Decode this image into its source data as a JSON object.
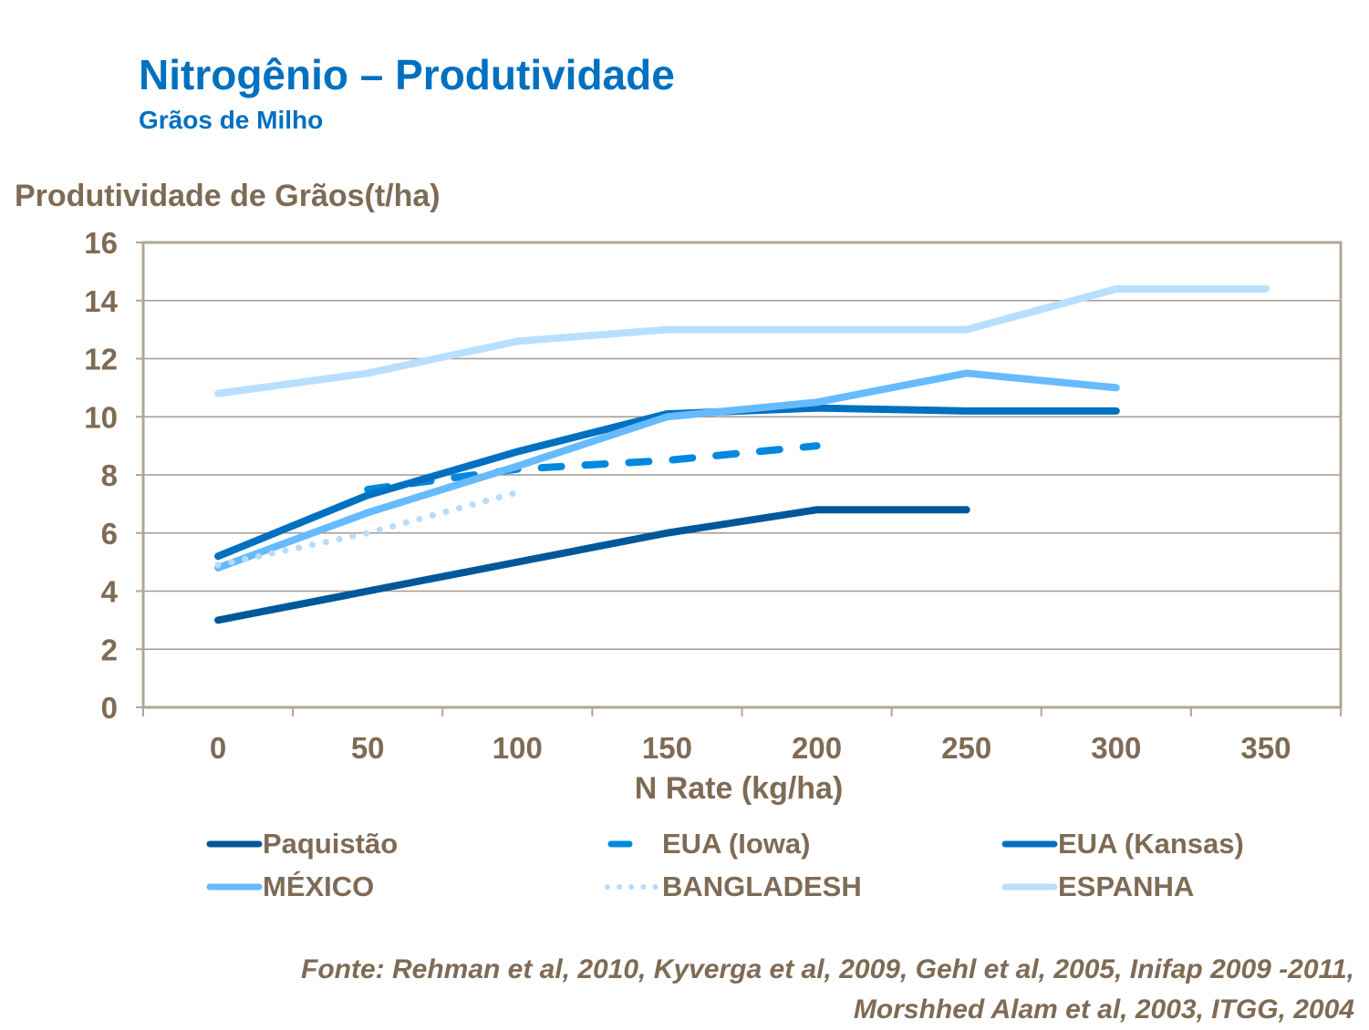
{
  "chart_data": {
    "type": "line",
    "title": "Nitrogênio – Produtividade",
    "subtitle": "Grãos de Milho",
    "xlabel": "N Rate (kg/ha)",
    "ylabel": "Produtividade de Grãos(t/ha)",
    "categories": [
      "0",
      "50",
      "100",
      "150",
      "200",
      "250",
      "300",
      "350"
    ],
    "ylim": [
      0,
      16
    ],
    "yticks": [
      "0",
      "2",
      "4",
      "6",
      "8",
      "10",
      "12",
      "14",
      "16"
    ],
    "grid": true,
    "legend": "bottom",
    "series": [
      {
        "name": "Paquistão",
        "color": "#00589a",
        "style": "solid",
        "values": [
          3.0,
          4.0,
          5.0,
          6.0,
          6.8,
          6.8,
          null,
          null
        ]
      },
      {
        "name": "EUA (Iowa)",
        "color": "#0088e0",
        "style": "dashed",
        "values": [
          null,
          7.5,
          8.2,
          8.5,
          9.0,
          null,
          null,
          null
        ]
      },
      {
        "name": "EUA (Kansas)",
        "color": "#0070c0",
        "style": "solid",
        "values": [
          5.2,
          7.3,
          8.8,
          10.1,
          10.3,
          10.2,
          10.2,
          null
        ]
      },
      {
        "name": "MÉXICO",
        "color": "#66bbff",
        "style": "solid",
        "values": [
          4.8,
          6.7,
          8.3,
          10.0,
          10.5,
          11.5,
          11.0,
          null
        ]
      },
      {
        "name": "BANGLADESH",
        "color": "#b8dcfa",
        "style": "dotted",
        "values": [
          4.9,
          6.0,
          7.4,
          null,
          null,
          null,
          null,
          null
        ]
      },
      {
        "name": "ESPANHA",
        "color": "#b8dfff",
        "style": "solid",
        "values": [
          10.8,
          11.5,
          12.6,
          13.0,
          13.0,
          13.0,
          14.4,
          14.4
        ]
      }
    ]
  },
  "source_lines": [
    "Fonte: Rehman et al, 2010, Kyverga et al, 2009, Gehl et al, 2005, Inifap 2009 -2011,",
    "Morshhed Alam et al, 2003, ITGG, 2004"
  ]
}
